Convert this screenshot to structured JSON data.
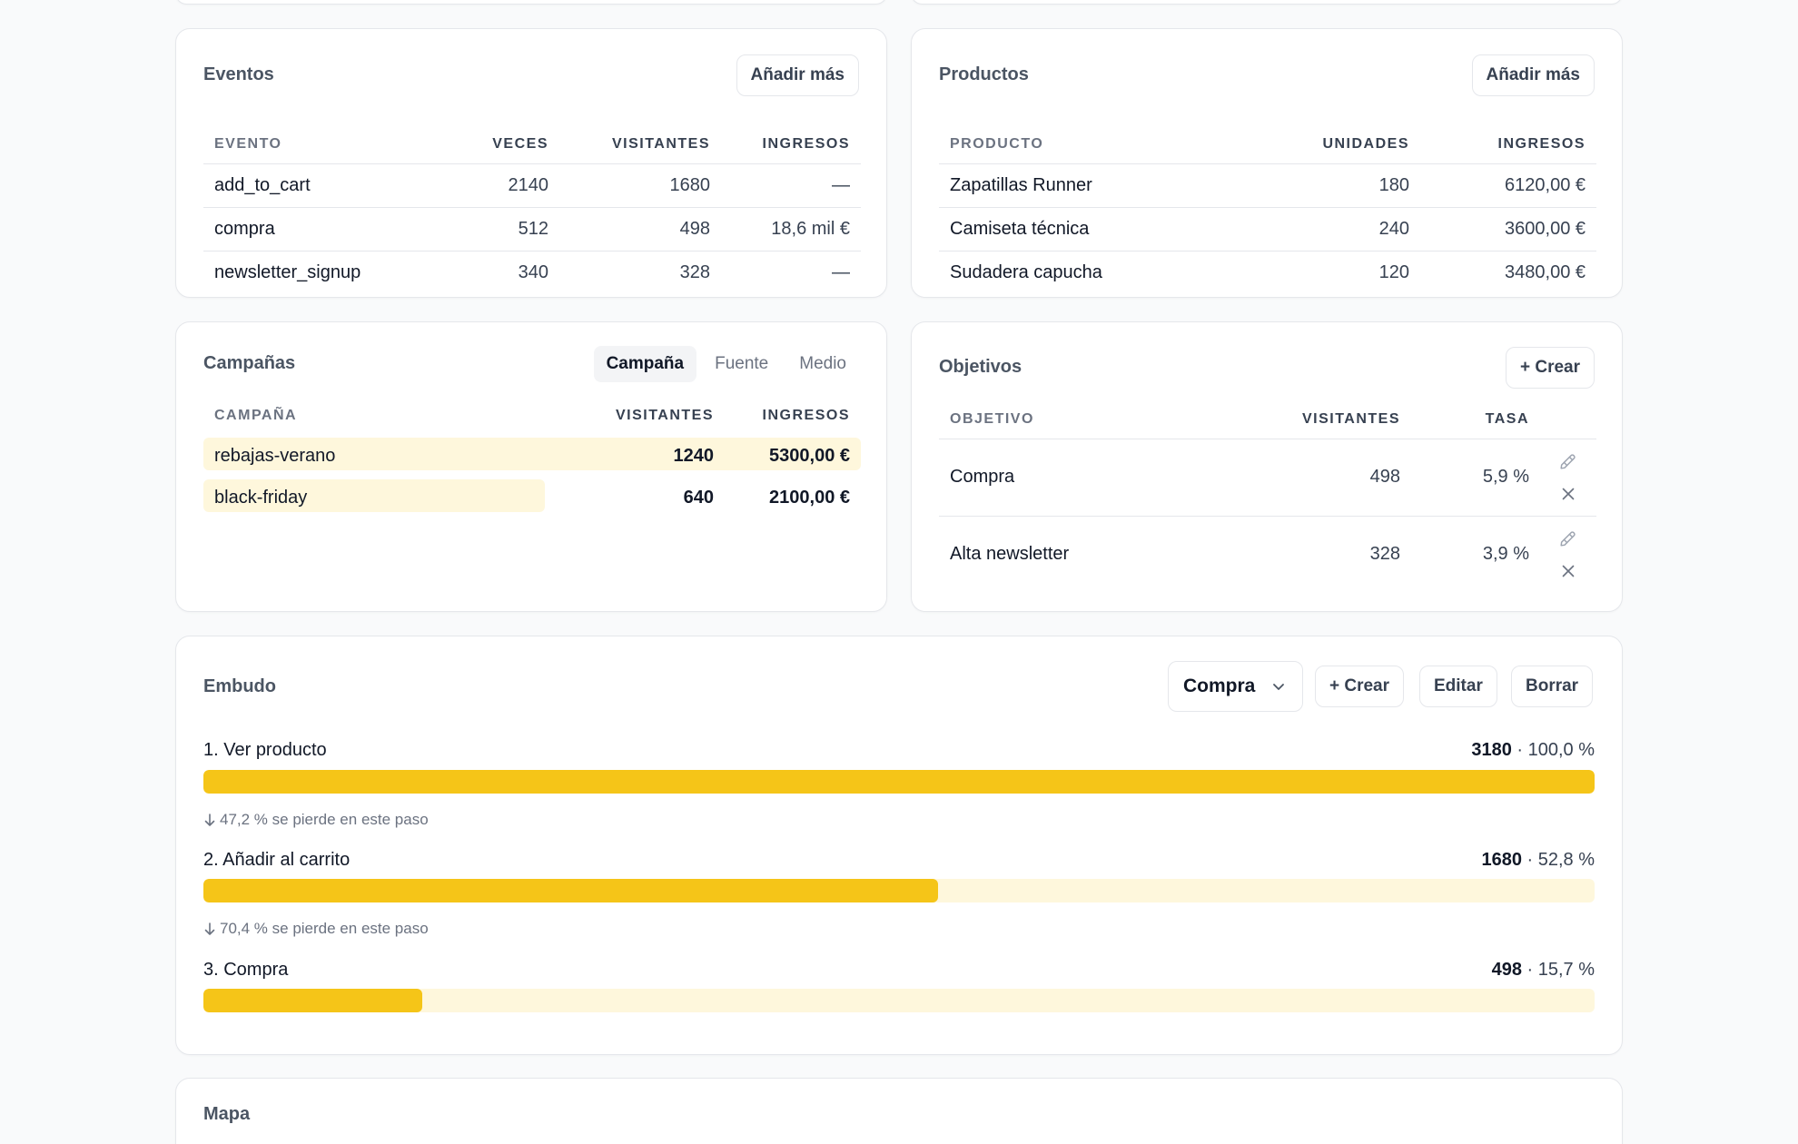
{
  "eventos": {
    "title": "Eventos",
    "add_label": "Añadir más",
    "headers": [
      "EVENTO",
      "VECES",
      "VISITANTES",
      "INGRESOS"
    ],
    "rows": [
      {
        "name": "add_to_cart",
        "veces": "2140",
        "visitantes": "1680",
        "ingresos": "—"
      },
      {
        "name": "compra",
        "veces": "512",
        "visitantes": "498",
        "ingresos": "18,6 mil €"
      },
      {
        "name": "newsletter_signup",
        "veces": "340",
        "visitantes": "328",
        "ingresos": "—"
      }
    ]
  },
  "productos": {
    "title": "Productos",
    "add_label": "Añadir más",
    "headers": [
      "PRODUCTO",
      "UNIDADES",
      "INGRESOS"
    ],
    "rows": [
      {
        "name": "Zapatillas Runner",
        "unidades": "180",
        "ingresos": "6120,00 €"
      },
      {
        "name": "Camiseta técnica",
        "unidades": "240",
        "ingresos": "3600,00 €"
      },
      {
        "name": "Sudadera capucha",
        "unidades": "120",
        "ingresos": "3480,00 €"
      }
    ]
  },
  "campanas": {
    "title": "Campañas",
    "tabs": [
      "Campaña",
      "Fuente",
      "Medio"
    ],
    "active_tab": "Campaña",
    "headers": [
      "CAMPAÑA",
      "VISITANTES",
      "INGRESOS"
    ],
    "rows": [
      {
        "name": "rebajas-verano",
        "visitantes": "1240",
        "ingresos": "5300,00 €",
        "share": 1.0
      },
      {
        "name": "black-friday",
        "visitantes": "640",
        "ingresos": "2100,00 €",
        "share": 0.52
      }
    ],
    "highlight_color": "#fef7dc"
  },
  "objetivos": {
    "title": "Objetivos",
    "create_label": "+ Crear",
    "headers": [
      "OBJETIVO",
      "VISITANTES",
      "TASA"
    ],
    "rows": [
      {
        "name": "Compra",
        "visitantes": "498",
        "tasa": "5,9 %"
      },
      {
        "name": "Alta newsletter",
        "visitantes": "328",
        "tasa": "3,9 %"
      }
    ],
    "icons": [
      "pencil-icon",
      "close-icon"
    ]
  },
  "embudo": {
    "title": "Embudo",
    "selected_funnel": "Compra",
    "create_label": "+ Crear",
    "edit_label": "Editar",
    "delete_label": "Borrar",
    "steps": [
      {
        "label": "1. Ver producto",
        "count": "3180",
        "pct": "· 100,0 %",
        "fraction": 1.0
      },
      {
        "label": "2. Añadir al carrito",
        "count": "1680",
        "pct": "· 52,8 %",
        "fraction": 0.528
      },
      {
        "label": "3. Compra",
        "count": "498",
        "pct": "· 15,7 %",
        "fraction": 0.157
      }
    ],
    "drops": [
      "47,2 % se pierde en este paso",
      "70,4 % se pierde en este paso"
    ],
    "bar_color": "#f5c518",
    "track_color": "#fef7dc"
  },
  "mapa": {
    "title": "Mapa"
  }
}
